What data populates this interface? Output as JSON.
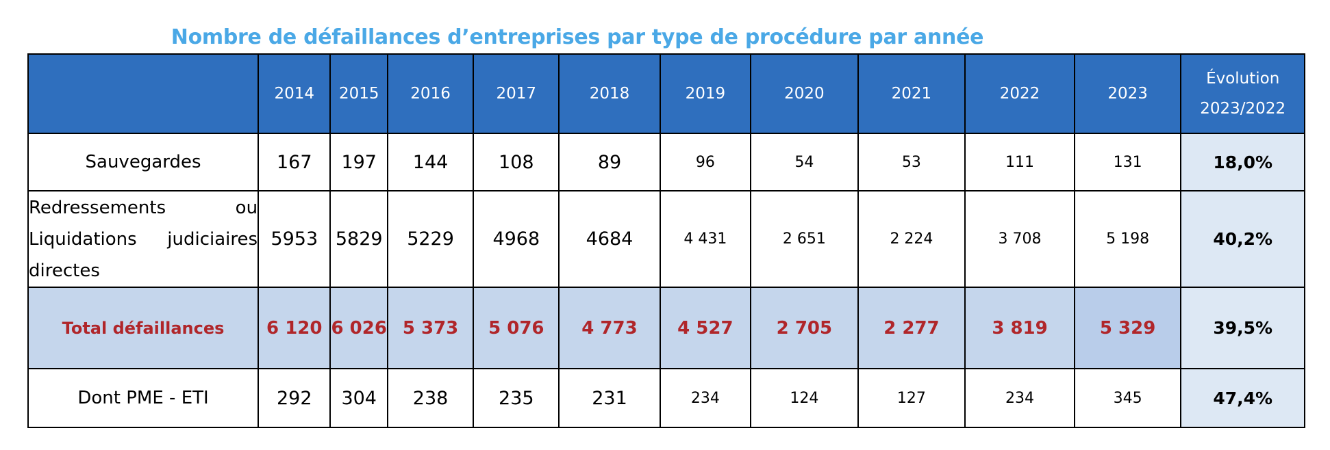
{
  "title": "Nombre de défaillances d’entreprises par type de procédure par année",
  "header": {
    "corner": "",
    "years": [
      "2014",
      "2015",
      "2016",
      "2017",
      "2018",
      "2019",
      "2020",
      "2021",
      "2022",
      "2023"
    ],
    "evolution_line1": "Évolution",
    "evolution_line2": "2023/2022"
  },
  "rows": {
    "sauvegardes": {
      "label": "Sauvegardes",
      "values": [
        "167",
        "197",
        "144",
        "108",
        "89",
        "96",
        "54",
        "53",
        "111",
        "131"
      ],
      "evolution": "18,0%"
    },
    "redressements": {
      "label": "Redressements ou Liquidations judiciaires directes",
      "values": [
        "5953",
        "5829",
        "5229",
        "4968",
        "4684",
        "4 431",
        "2 651",
        "2 224",
        "3 708",
        "5 198"
      ],
      "evolution": "40,2%"
    },
    "total": {
      "label": "Total défaillances",
      "values": [
        "6 120",
        "6 026",
        "5 373",
        "5 076",
        "4 773",
        "4 527",
        "2 705",
        "2 277",
        "3 819",
        "5 329"
      ],
      "evolution": "39,5%"
    },
    "pme": {
      "label": "Dont PME - ETI",
      "values": [
        "292",
        "304",
        "238",
        "235",
        "231",
        "234",
        "124",
        "127",
        "234",
        "345"
      ],
      "evolution": "47,4%"
    }
  },
  "colors": {
    "title": "#4aa8e6",
    "header_bg": "#2f6fbe",
    "total_bg": "#c5d6ec",
    "total_text": "#b0262a",
    "evolution_bg": "#dde8f4"
  }
}
